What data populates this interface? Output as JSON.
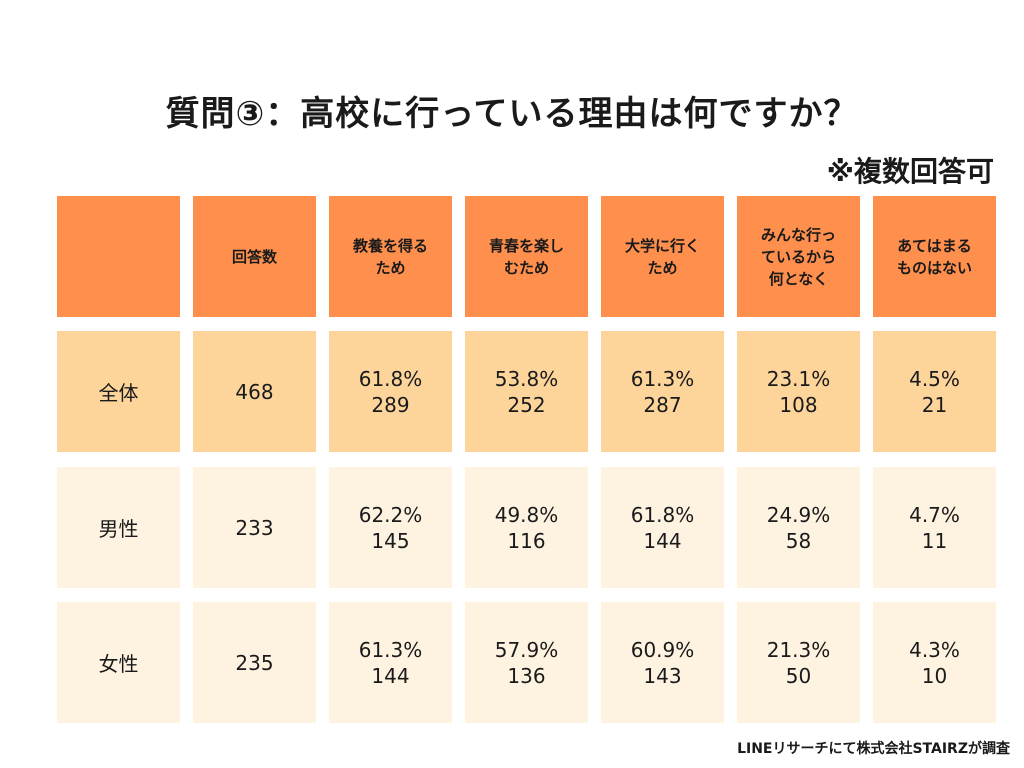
{
  "title": "質問③：高校に行っている理由は何ですか？",
  "note": "※複数回答可",
  "source": "LINEリサーチにて株式会社STAIRZが調査",
  "colors": {
    "header": "#ff8f4d",
    "row_total": "#fdd59b",
    "row_light": "#fef3e1"
  },
  "chart_data": {
    "type": "table",
    "title": "質問③：高校に行っている理由は何ですか？",
    "columns": [
      {
        "lines": [
          ""
        ]
      },
      {
        "lines": [
          "回答数"
        ]
      },
      {
        "lines": [
          "教養を得る",
          "ため"
        ]
      },
      {
        "lines": [
          "青春を楽し",
          "むため"
        ]
      },
      {
        "lines": [
          "大学に行く",
          "ため"
        ]
      },
      {
        "lines": [
          "みんな行っ",
          "ているから",
          "何となく"
        ]
      },
      {
        "lines": [
          "あてはまる",
          "ものはない"
        ]
      }
    ],
    "rows": [
      {
        "label": "全体",
        "count": "468",
        "cells": [
          {
            "pct": "61.8%",
            "n": "289"
          },
          {
            "pct": "53.8%",
            "n": "252"
          },
          {
            "pct": "61.3%",
            "n": "287"
          },
          {
            "pct": "23.1%",
            "n": "108"
          },
          {
            "pct": "4.5%",
            "n": "21"
          }
        ]
      },
      {
        "label": "男性",
        "count": "233",
        "cells": [
          {
            "pct": "62.2%",
            "n": "145"
          },
          {
            "pct": "49.8%",
            "n": "116"
          },
          {
            "pct": "61.8%",
            "n": "144"
          },
          {
            "pct": "24.9%",
            "n": "58"
          },
          {
            "pct": "4.7%",
            "n": "11"
          }
        ]
      },
      {
        "label": "女性",
        "count": "235",
        "cells": [
          {
            "pct": "61.3%",
            "n": "144"
          },
          {
            "pct": "57.9%",
            "n": "136"
          },
          {
            "pct": "60.9%",
            "n": "143"
          },
          {
            "pct": "21.3%",
            "n": "50"
          },
          {
            "pct": "4.3%",
            "n": "10"
          }
        ]
      }
    ]
  }
}
